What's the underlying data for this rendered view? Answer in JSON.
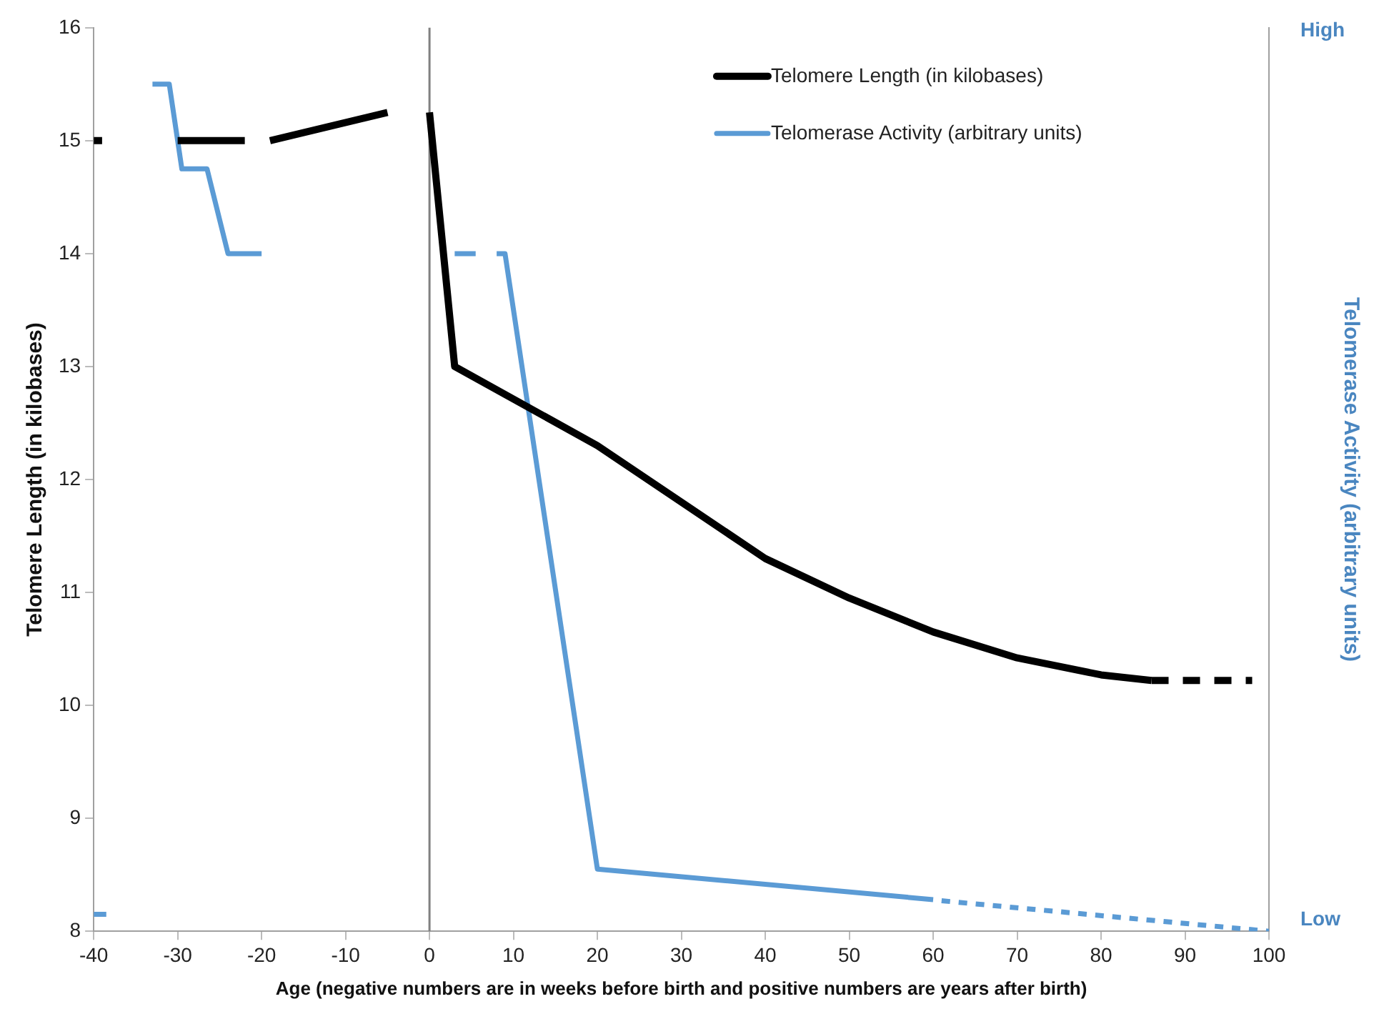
{
  "chart_data": {
    "type": "line",
    "xlabel": "Age (negative numbers are in weeks before birth and positive numbers are years after birth)",
    "ylabel": "Telomere Length (in kilobases)",
    "y2label": "Telomerase Activity (arbitrary units)",
    "xlim": [
      -40,
      100
    ],
    "xticks": [
      -40,
      -30,
      -20,
      -10,
      0,
      10,
      20,
      30,
      40,
      50,
      60,
      70,
      80,
      90,
      100
    ],
    "ylim": [
      8,
      16
    ],
    "yticks": [
      8,
      9,
      10,
      11,
      12,
      13,
      14,
      15,
      16
    ],
    "annotations": [
      "High",
      "Low"
    ],
    "grid": false,
    "legend": "top right",
    "marker": "none",
    "ref_lines": [
      {
        "axis": "x",
        "value": 0,
        "color": "#808080"
      }
    ],
    "series": [
      {
        "name": "Telomere Length (in kilobases)",
        "color": "#000000",
        "line_style": "solid",
        "x": [
          -40,
          -39,
          -38,
          -30,
          -22,
          -21,
          -19,
          -5,
          -3,
          0,
          3,
          20,
          30,
          40,
          50,
          60,
          70,
          80,
          86
        ],
        "values": [
          15,
          15,
          null,
          15,
          15,
          null,
          15,
          15.25,
          null,
          15.25,
          13,
          12.3,
          11.8,
          11.3,
          10.95,
          10.65,
          10.42,
          10.27,
          10.22
        ]
      },
      {
        "color": "#000000",
        "line_style": "dashed",
        "x": [
          86,
          98
        ],
        "values": [
          10.22,
          10.22
        ]
      },
      {
        "name": "Telomerase Activity (arbitrary units)",
        "color": "#5b9bd5",
        "line_style": "solid",
        "x": [
          -40,
          -38.5,
          -36,
          -33,
          -31,
          -29.5,
          -26.5,
          -24,
          -20,
          -10,
          3,
          5.5,
          7,
          8,
          9,
          20,
          60
        ],
        "values": [
          8.15,
          8.15,
          null,
          15.5,
          15.5,
          14.75,
          14.75,
          14,
          14,
          null,
          14,
          14,
          null,
          14,
          14,
          8.55,
          8.28
        ]
      },
      {
        "color": "#5b9bd5",
        "line_style": "dotted",
        "x": [
          61,
          100
        ],
        "values": [
          8.27,
          8.0
        ]
      }
    ]
  }
}
